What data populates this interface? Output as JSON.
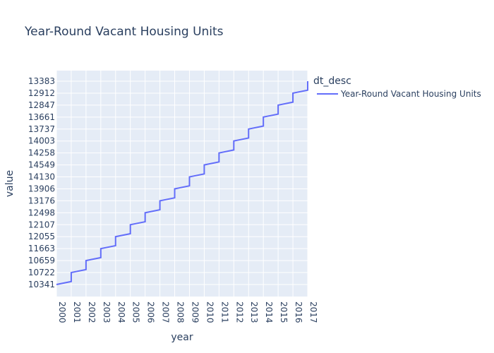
{
  "chart_data": {
    "type": "line",
    "line_shape": "step",
    "title": "Year-Round Vacant Housing Units",
    "xlabel": "year",
    "ylabel": "value",
    "x_ticks": [
      "2000",
      "2001",
      "2002",
      "2003",
      "2004",
      "2005",
      "2006",
      "2007",
      "2008",
      "2009",
      "2010",
      "2011",
      "2012",
      "2013",
      "2014",
      "2015",
      "2016",
      "2017"
    ],
    "y_categories": [
      "10341",
      "10722",
      "10659",
      "11663",
      "12055",
      "12107",
      "12498",
      "13176",
      "13906",
      "14130",
      "14549",
      "14258",
      "14003",
      "13737",
      "13661",
      "12847",
      "12912",
      "13383"
    ],
    "legend_title": "dt_desc",
    "legend_position": "top-right",
    "grid": true,
    "colors": {
      "plot_bg": "#e5ecf6",
      "grid": "#ffffff",
      "line": "#636efa",
      "text": "#2a3f5f"
    },
    "series": [
      {
        "name": "Year-Round Vacant Housing Units",
        "x": [
          "2000",
          "2001",
          "2002",
          "2003",
          "2004",
          "2005",
          "2006",
          "2007",
          "2008",
          "2009",
          "2010",
          "2011",
          "2012",
          "2013",
          "2014",
          "2015",
          "2016",
          "2017"
        ],
        "y": [
          "10341",
          "10722",
          "10659",
          "11663",
          "12055",
          "12107",
          "12498",
          "13176",
          "13906",
          "14130",
          "14549",
          "14258",
          "14003",
          "13737",
          "13661",
          "12847",
          "12912",
          "13383"
        ]
      }
    ]
  }
}
